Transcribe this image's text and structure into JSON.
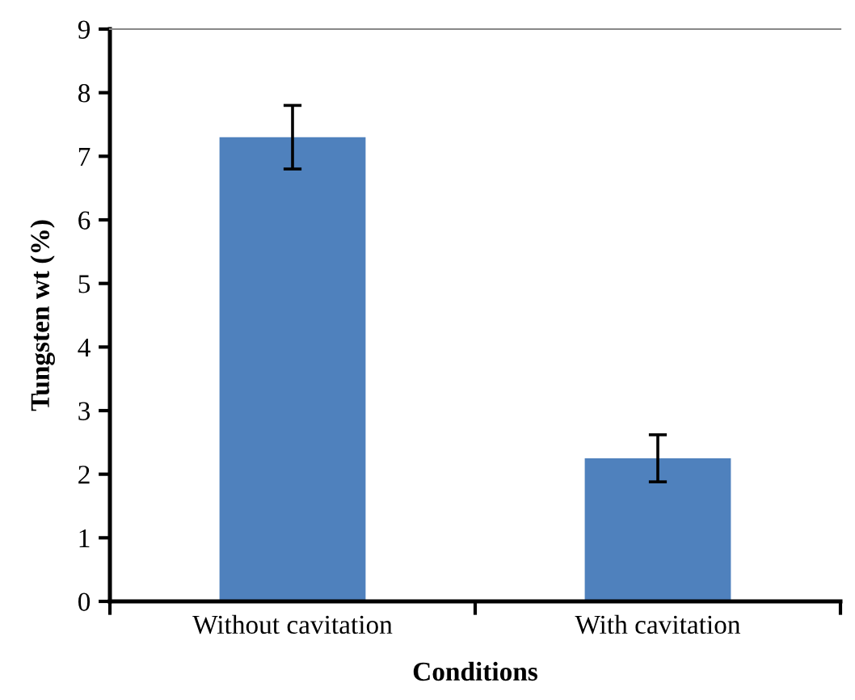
{
  "chart_data": {
    "type": "bar",
    "xlabel": "Conditions",
    "ylabel": "Tungsten wt (%)",
    "categories": [
      "Without cavitation",
      "With cavitation"
    ],
    "values": [
      7.3,
      2.25
    ],
    "errors": [
      0.5,
      0.37
    ],
    "color": "#4f81bd",
    "ylim": [
      0,
      9
    ],
    "yticks": [
      0,
      1,
      2,
      3,
      4,
      5,
      6,
      7,
      8,
      9
    ],
    "grid": false,
    "legend": false
  }
}
